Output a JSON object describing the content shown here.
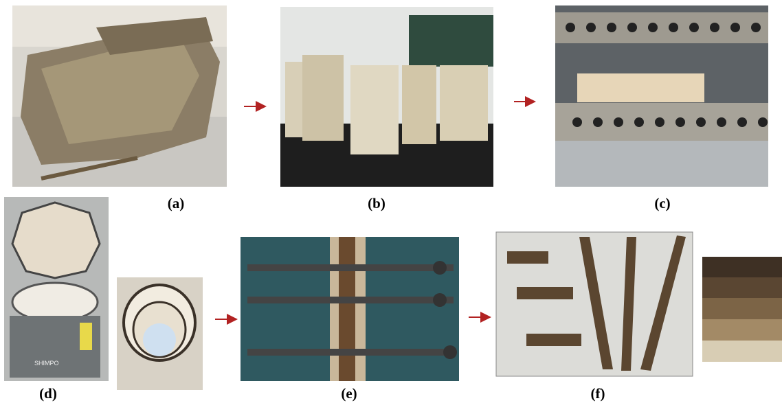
{
  "figure": {
    "labels": [
      "(a)",
      "(b)",
      "(c)",
      "(d)",
      "(e)",
      "(f)"
    ],
    "kiln_brand": "SHIMPO"
  }
}
